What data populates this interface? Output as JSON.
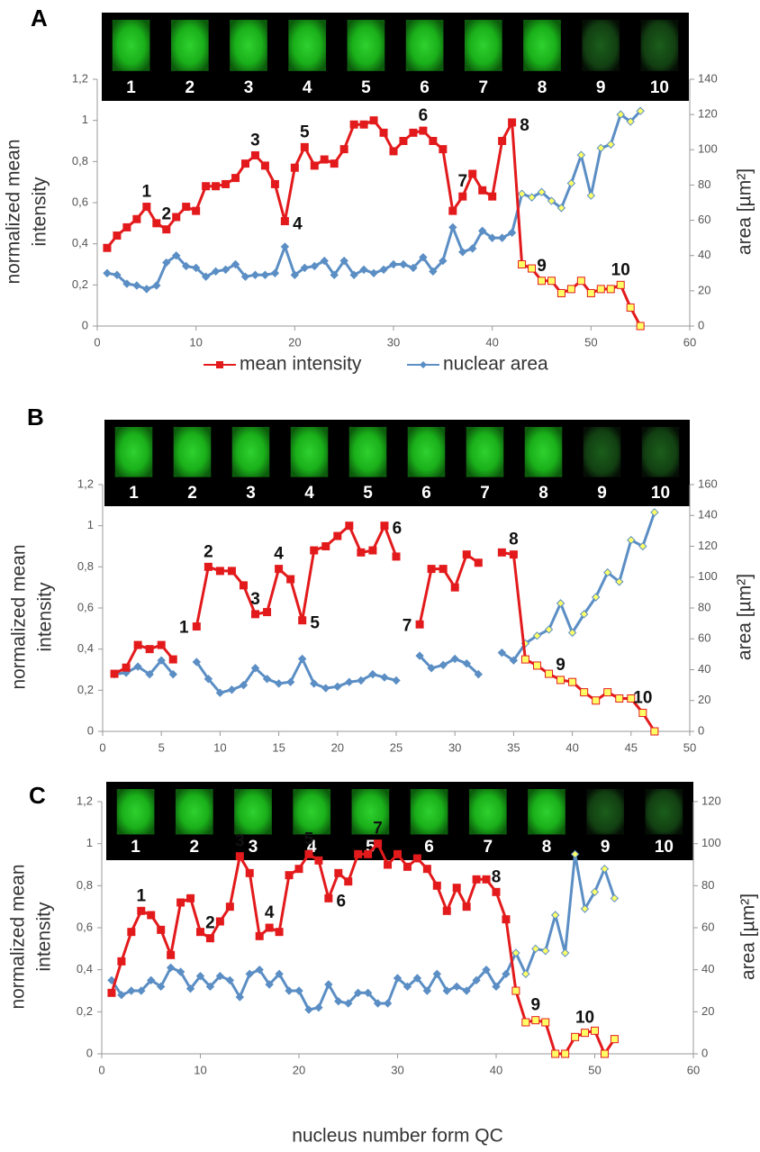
{
  "chart_data": [
    {
      "type": "line",
      "panel": "A",
      "image_labels": [
        "1",
        "2",
        "3",
        "4",
        "5",
        "6",
        "7",
        "8",
        "9",
        "10"
      ],
      "y_label": "normalized mean intensity",
      "y2_label": "area [µm²]",
      "legend": "bottom",
      "x": [
        1,
        2,
        3,
        4,
        5,
        6,
        7,
        8,
        9,
        10,
        11,
        12,
        13,
        14,
        15,
        16,
        17,
        18,
        19,
        20,
        21,
        22,
        23,
        24,
        25,
        26,
        27,
        28,
        29,
        30,
        31,
        32,
        33,
        34,
        35,
        36,
        37,
        38,
        39,
        40,
        41,
        42,
        43,
        44,
        45,
        46,
        47,
        48,
        49,
        50,
        51,
        52,
        53,
        54,
        55
      ],
      "xlim": [
        0,
        60
      ],
      "xticks": [
        0,
        10,
        20,
        30,
        40,
        50,
        60
      ],
      "ylim": [
        0,
        1.2
      ],
      "yticks": [
        0,
        {
          "value": 0.2,
          "label": "0,2"
        },
        {
          "value": 0.4,
          "label": "0,4"
        },
        {
          "value": 0.6,
          "label": "0,6"
        },
        {
          "value": 0.8,
          "label": "0,8"
        },
        1,
        {
          "value": 1.2,
          "label": "1,2"
        }
      ],
      "y2lim": [
        0,
        140
      ],
      "y2ticks": [
        0,
        20,
        40,
        60,
        80,
        100,
        120,
        140
      ],
      "highlight": {
        "color": "#ffff66",
        "from_x": 43
      },
      "series": [
        {
          "name": "mean intensity",
          "color": "#e31a1c",
          "marker": "square",
          "values": [
            0.38,
            0.44,
            0.48,
            0.52,
            0.58,
            0.5,
            0.47,
            0.53,
            0.58,
            0.56,
            0.68,
            0.68,
            0.69,
            0.72,
            0.79,
            0.83,
            0.78,
            0.69,
            0.51,
            0.77,
            0.87,
            0.78,
            0.81,
            0.79,
            0.86,
            0.98,
            0.98,
            1.0,
            0.94,
            0.85,
            0.9,
            0.94,
            0.95,
            0.9,
            0.86,
            0.56,
            0.63,
            0.74,
            0.66,
            0.63,
            0.9,
            0.99,
            0.3,
            0.28,
            0.22,
            0.22,
            0.16,
            0.18,
            0.22,
            0.16,
            0.18,
            0.18,
            0.2,
            0.09,
            0
          ]
        },
        {
          "name": "nuclear area",
          "color": "#5b8ec4",
          "marker": "diamond",
          "axis": "y2",
          "values": [
            30,
            29,
            24,
            23,
            21,
            23,
            36,
            40,
            34,
            33,
            28,
            31,
            32,
            35,
            28,
            29,
            29,
            30,
            45,
            29,
            33,
            34,
            37,
            29,
            37,
            29,
            32,
            30,
            32,
            35,
            35,
            33,
            39,
            31,
            37,
            56,
            42,
            44,
            54,
            50,
            50,
            53,
            75,
            73,
            76,
            71,
            67,
            81,
            97,
            74,
            101,
            103,
            120,
            116,
            122
          ]
        }
      ],
      "annotations": [
        {
          "text": "1",
          "x": 5,
          "position": "above"
        },
        {
          "text": "2",
          "x": 7,
          "position": "above"
        },
        {
          "text": "3",
          "x": 16,
          "position": "above"
        },
        {
          "text": "4",
          "x": 19,
          "position": "right"
        },
        {
          "text": "5",
          "x": 21,
          "position": "above"
        },
        {
          "text": "6",
          "x": 33,
          "position": "above"
        },
        {
          "text": "7",
          "x": 37,
          "position": "above"
        },
        {
          "text": "8",
          "x": 42,
          "position": "right"
        },
        {
          "text": "9",
          "x": 45,
          "position": "above"
        },
        {
          "text": "10",
          "x": 53,
          "position": "above"
        }
      ]
    },
    {
      "type": "line",
      "panel": "B",
      "image_labels": [
        "1",
        "2",
        "3",
        "4",
        "5",
        "6",
        "7",
        "8",
        "9",
        "10"
      ],
      "y_label": "normalized mean intensity",
      "y2_label": "area [µm²]",
      "x": [
        1,
        2,
        3,
        4,
        5,
        6,
        7,
        8,
        9,
        10,
        11,
        12,
        13,
        14,
        15,
        16,
        17,
        18,
        19,
        20,
        21,
        22,
        23,
        24,
        25,
        26,
        27,
        28,
        29,
        30,
        31,
        32,
        33,
        34,
        35,
        36,
        37,
        38,
        39,
        40,
        41,
        42,
        43,
        44,
        45,
        46,
        47
      ],
      "xlim": [
        0,
        50
      ],
      "xticks": [
        0,
        5,
        10,
        15,
        20,
        25,
        30,
        35,
        40,
        45,
        50
      ],
      "ylim": [
        0,
        1.2
      ],
      "yticks": [
        0,
        {
          "value": 0.2,
          "label": "0,2"
        },
        {
          "value": 0.4,
          "label": "0,4"
        },
        {
          "value": 0.6,
          "label": "0,6"
        },
        {
          "value": 0.8,
          "label": "0,8"
        },
        1,
        {
          "value": 1.2,
          "label": "1,2"
        }
      ],
      "y2lim": [
        0,
        160
      ],
      "y2ticks": [
        0,
        20,
        40,
        60,
        80,
        100,
        120,
        140,
        160
      ],
      "highlight": {
        "color": "#ffff66",
        "from_x": 36
      },
      "series": [
        {
          "name": "mean intensity",
          "color": "#e31a1c",
          "marker": "square",
          "values": [
            0.28,
            0.31,
            0.42,
            0.4,
            0.42,
            0.35,
            null,
            0.51,
            0.8,
            0.78,
            0.78,
            0.71,
            0.57,
            0.58,
            0.79,
            0.74,
            0.54,
            0.88,
            0.9,
            0.95,
            1.0,
            0.87,
            0.88,
            1.0,
            0.85,
            null,
            0.52,
            0.79,
            0.79,
            0.7,
            0.86,
            0.82,
            null,
            0.87,
            0.86,
            0.35,
            0.32,
            0.28,
            0.25,
            0.24,
            0.19,
            0.15,
            0.19,
            0.16,
            0.16,
            0.09,
            0
          ]
        },
        {
          "name": "nuclear area",
          "color": "#5b8ec4",
          "marker": "diamond",
          "axis": "y2",
          "values": [
            37,
            38,
            42,
            37,
            46,
            37,
            null,
            45,
            34,
            25,
            27,
            30,
            41,
            34,
            31,
            32,
            47,
            31,
            28,
            29,
            32,
            33,
            37,
            35,
            33,
            null,
            49,
            41,
            43,
            47,
            44,
            37,
            null,
            51,
            46,
            57,
            62,
            66,
            83,
            64,
            76,
            87,
            103,
            97,
            124,
            120,
            142
          ]
        }
      ],
      "annotations": [
        {
          "text": "1",
          "x": 8,
          "position": "left"
        },
        {
          "text": "2",
          "x": 9,
          "position": "above"
        },
        {
          "text": "3",
          "x": 13,
          "position": "above"
        },
        {
          "text": "4",
          "x": 15,
          "position": "above"
        },
        {
          "text": "5",
          "x": 17,
          "position": "right"
        },
        {
          "text": "6",
          "x": 24,
          "position": "right"
        },
        {
          "text": "7",
          "x": 27,
          "position": "left"
        },
        {
          "text": "8",
          "x": 35,
          "position": "above"
        },
        {
          "text": "9",
          "x": 39,
          "position": "above"
        },
        {
          "text": "10",
          "x": 46,
          "position": "above"
        }
      ]
    },
    {
      "type": "line",
      "panel": "C",
      "image_labels": [
        "1",
        "2",
        "3",
        "4",
        "5",
        "6",
        "7",
        "8",
        "9",
        "10"
      ],
      "y_label": "normalized mean intensity",
      "y2_label": "area [µm²]",
      "x_label": "nucleus number form QC",
      "x": [
        1,
        2,
        3,
        4,
        5,
        6,
        7,
        8,
        9,
        10,
        11,
        12,
        13,
        14,
        15,
        16,
        17,
        18,
        19,
        20,
        21,
        22,
        23,
        24,
        25,
        26,
        27,
        28,
        29,
        30,
        31,
        32,
        33,
        34,
        35,
        36,
        37,
        38,
        39,
        40,
        41,
        42,
        43,
        44,
        45,
        46,
        47,
        48,
        49,
        50,
        51,
        52
      ],
      "xlim": [
        0,
        60
      ],
      "xticks": [
        0,
        10,
        20,
        30,
        40,
        50,
        60
      ],
      "ylim": [
        0,
        1.2
      ],
      "yticks": [
        0,
        {
          "value": 0.2,
          "label": "0,2"
        },
        {
          "value": 0.4,
          "label": "0,4"
        },
        {
          "value": 0.6,
          "label": "0,6"
        },
        {
          "value": 0.8,
          "label": "0,8"
        },
        1,
        {
          "value": 1.2,
          "label": "1,2"
        }
      ],
      "y2lim": [
        0,
        120
      ],
      "y2ticks": [
        0,
        20,
        40,
        60,
        80,
        100,
        120
      ],
      "highlight": {
        "color": "#ffff66",
        "from_x": 42
      },
      "series": [
        {
          "name": "mean intensity",
          "color": "#e31a1c",
          "marker": "square",
          "values": [
            0.29,
            0.44,
            0.58,
            0.68,
            0.66,
            0.59,
            0.47,
            0.72,
            0.74,
            0.58,
            0.55,
            0.63,
            0.7,
            0.94,
            0.86,
            0.56,
            0.6,
            0.58,
            0.85,
            0.88,
            0.95,
            0.92,
            0.74,
            0.86,
            0.82,
            0.95,
            0.95,
            1.0,
            0.9,
            0.95,
            0.89,
            0.93,
            0.88,
            0.8,
            0.68,
            0.79,
            0.7,
            0.83,
            0.83,
            0.77,
            0.64,
            0.3,
            0.15,
            0.16,
            0.15,
            0,
            0,
            0.08,
            0.1,
            0.11,
            0,
            0.07
          ]
        },
        {
          "name": "nuclear area",
          "color": "#5b8ec4",
          "marker": "diamond",
          "axis": "y2",
          "values": [
            35,
            28,
            30,
            30,
            35,
            32,
            41,
            39,
            31,
            37,
            32,
            37,
            35,
            27,
            38,
            40,
            33,
            38,
            30,
            30,
            21,
            22,
            33,
            25,
            24,
            29,
            29,
            24,
            24,
            36,
            32,
            36,
            30,
            38,
            30,
            32,
            30,
            35,
            40,
            32,
            38,
            48,
            38,
            50,
            49,
            66,
            48,
            95,
            69,
            77,
            88,
            74
          ]
        }
      ],
      "annotations": [
        {
          "text": "1",
          "x": 4,
          "position": "above"
        },
        {
          "text": "2",
          "x": 11,
          "position": "above"
        },
        {
          "text": "3",
          "x": 14,
          "position": "above"
        },
        {
          "text": "4",
          "x": 17,
          "position": "above"
        },
        {
          "text": "5",
          "x": 21,
          "position": "above"
        },
        {
          "text": "6",
          "x": 23,
          "position": "right"
        },
        {
          "text": "7",
          "x": 28,
          "position": "above"
        },
        {
          "text": "8",
          "x": 40,
          "position": "above"
        },
        {
          "text": "9",
          "x": 44,
          "position": "above"
        },
        {
          "text": "10",
          "x": 49,
          "position": "above"
        }
      ]
    }
  ]
}
